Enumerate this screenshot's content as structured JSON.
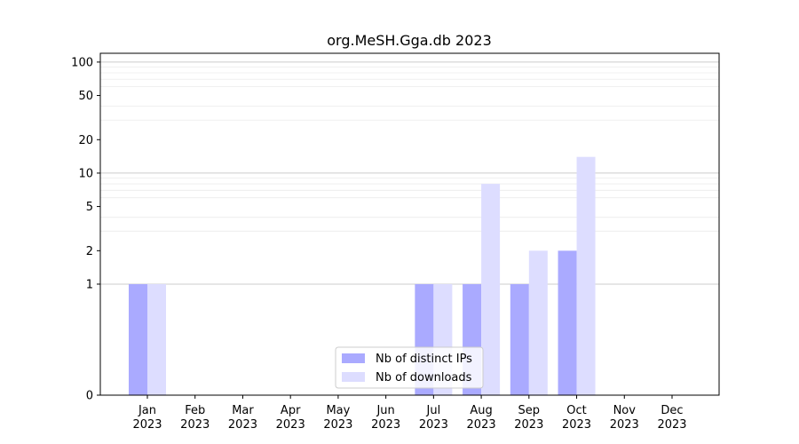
{
  "chart_data": {
    "type": "bar",
    "title": "org.MeSH.Gga.db 2023",
    "xlabel": "",
    "ylabel": "",
    "y_scale": "symlog",
    "ylim": [
      0,
      120
    ],
    "y_ticks": [
      0,
      1,
      2,
      5,
      10,
      20,
      50,
      100
    ],
    "categories": [
      "Jan\n2023",
      "Feb\n2023",
      "Mar\n2023",
      "Apr\n2023",
      "May\n2023",
      "Jun\n2023",
      "Jul\n2023",
      "Aug\n2023",
      "Sep\n2023",
      "Oct\n2023",
      "Nov\n2023",
      "Dec\n2023"
    ],
    "series": [
      {
        "name": "Nb of distinct IPs",
        "color": "#aaaaff",
        "values": [
          1,
          0,
          0,
          0,
          0,
          0,
          1,
          1,
          1,
          2,
          0,
          0
        ]
      },
      {
        "name": "Nb of downloads",
        "color": "#ddddff",
        "values": [
          1,
          0,
          0,
          0,
          0,
          0,
          1,
          8,
          2,
          14,
          0,
          0
        ]
      }
    ],
    "grid": true,
    "legend_position": "lower-center"
  }
}
